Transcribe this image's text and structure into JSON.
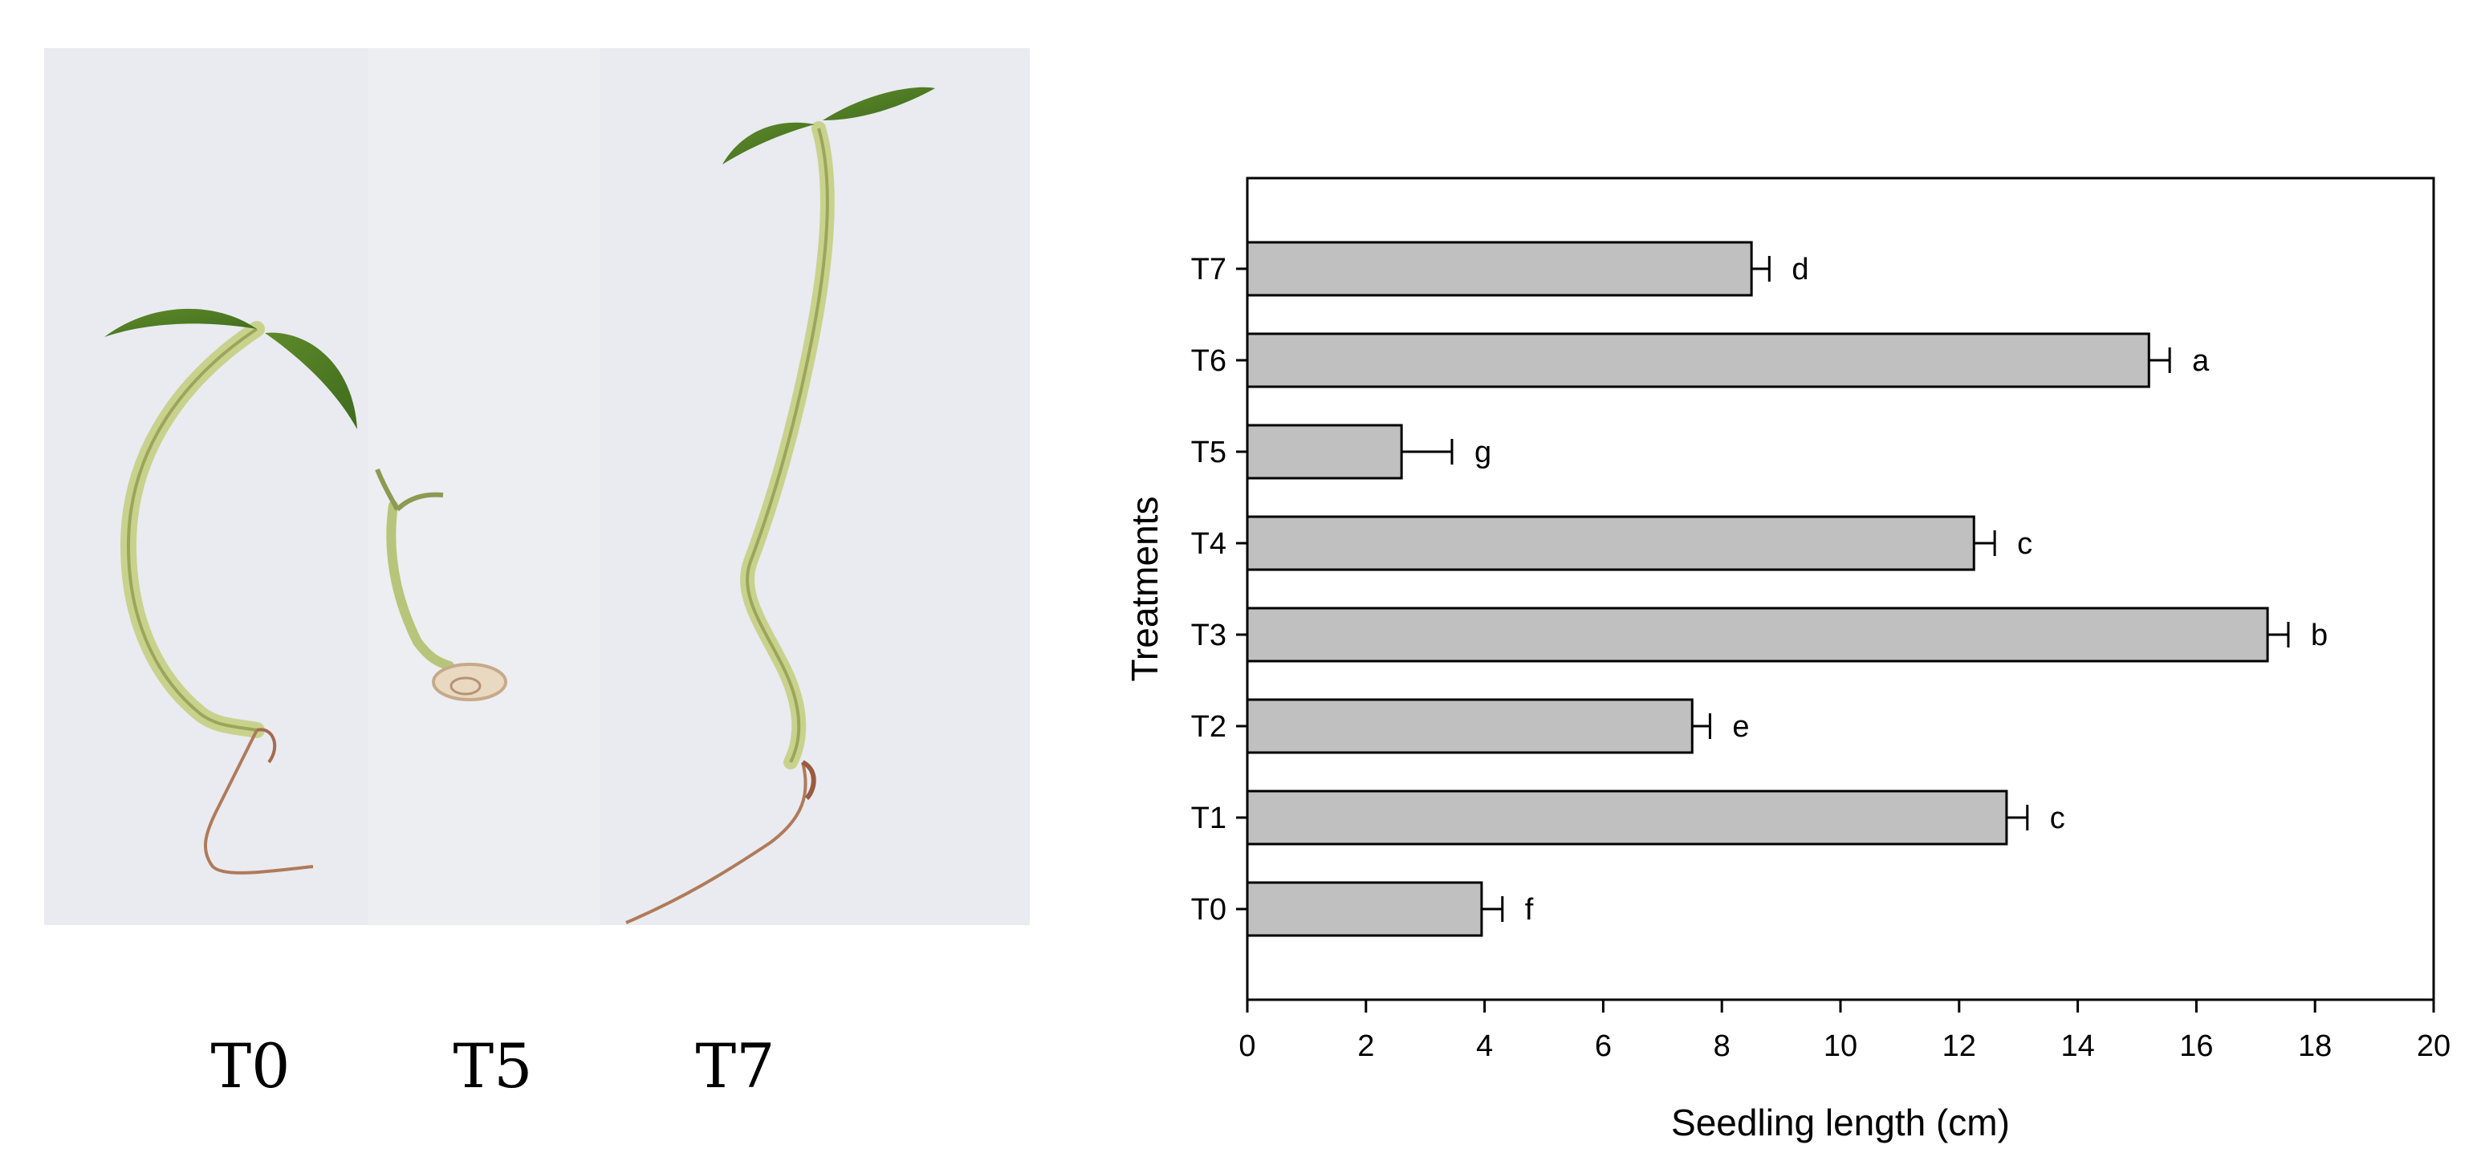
{
  "photo": {
    "labels": [
      "T0",
      "T5",
      "T7"
    ],
    "background_color": "#e9ebf0"
  },
  "chart_data": {
    "type": "bar",
    "orientation": "horizontal",
    "categories": [
      "T0",
      "T1",
      "T2",
      "T3",
      "T4",
      "T5",
      "T6",
      "T7"
    ],
    "values": [
      3.95,
      12.8,
      7.5,
      17.2,
      12.25,
      2.6,
      15.2,
      8.5
    ],
    "errors": [
      0.35,
      0.35,
      0.3,
      0.35,
      0.35,
      0.85,
      0.35,
      0.3
    ],
    "significance": [
      "f",
      "c",
      "e",
      "b",
      "c",
      "g",
      "a",
      "d"
    ],
    "xlabel": "Seedling length (cm)",
    "ylabel": "Treatments",
    "xlim": [
      0,
      20
    ],
    "xticks": [
      "0",
      "2",
      "4",
      "6",
      "8",
      "10",
      "12",
      "14",
      "16",
      "18",
      "20"
    ],
    "grid": false,
    "legend": "none",
    "bar_color": "#c0c0c0",
    "edge_color": "#000000"
  }
}
